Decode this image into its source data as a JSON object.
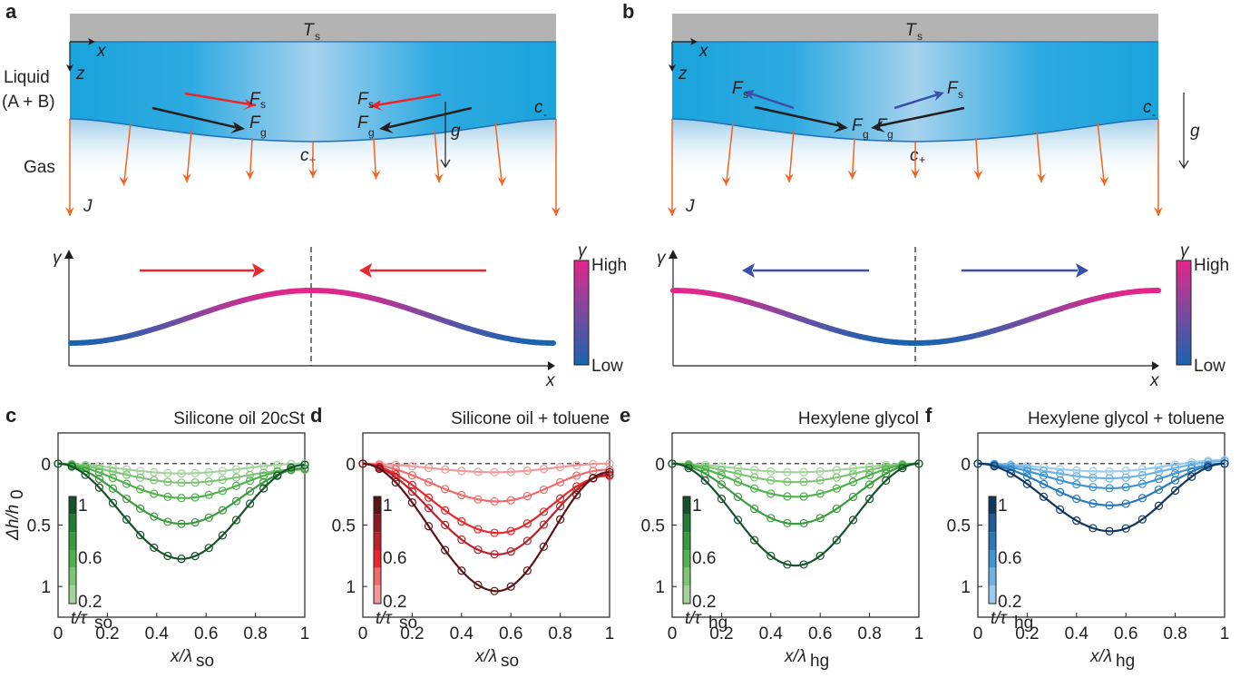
{
  "panels": {
    "a": {
      "letter": "a",
      "top_label": "T",
      "top_label_sub": "s",
      "axis_x": "x",
      "axis_z": "z",
      "liquid_label_1": "Liquid",
      "liquid_label_2": "(A + B)",
      "gas_label": "Gas",
      "flux_label": "J",
      "fs_label": "F",
      "fs_sub": "s",
      "fg_label": "F",
      "fg_sub": "g",
      "c_minus": "c",
      "c_minus_sub": "-",
      "c_plus": "c",
      "c_plus_sub": "+",
      "gravity": "g",
      "fs_color": "#e8262b"
    },
    "b": {
      "letter": "b",
      "top_label": "T",
      "top_label_sub": "s",
      "axis_x": "x",
      "axis_z": "z",
      "flux_label": "J",
      "fs_label": "F",
      "fs_sub": "s",
      "fg_label": "F",
      "fg_sub": "g",
      "c_minus": "c",
      "c_minus_sub": "-",
      "c_plus": "c",
      "c_plus_sub": "+",
      "gravity": "g",
      "fs_color": "#3a4fa8"
    },
    "a_lower": {
      "y_label": "γ",
      "x_label": "x",
      "colorbar_title": "γ",
      "colorbar_high": "High",
      "colorbar_low": "Low",
      "profile": "peak-center",
      "arrow_color": "#e8262b"
    },
    "b_lower": {
      "y_label": "γ",
      "x_label": "x",
      "colorbar_title": "γ",
      "colorbar_high": "High",
      "colorbar_low": "Low",
      "profile": "trough-center",
      "arrow_color": "#3a4fa8"
    }
  },
  "colors": {
    "liquid": "#1aa3dc",
    "liquid_center": "#a6d2ee",
    "substrate": "#b3b3b4",
    "flux": "#f26522",
    "gamma_high": "#e3268a",
    "gamma_low": "#1a63b0"
  },
  "chart_data": [
    {
      "letter": "c",
      "type": "line",
      "title": "Silicone oil 20cSt",
      "xlabel": "x/λ",
      "xlabel_sub": "so",
      "ylabel": "Δh/h",
      "ylabel_sub": "0",
      "xlim": [
        0,
        1
      ],
      "ylim": [
        1.25,
        -0.25
      ],
      "y_inverted": true,
      "xticks": [
        "0",
        "0.2",
        "0.4",
        "0.6",
        "0.8",
        "1"
      ],
      "yticks": [
        "0",
        "0.5",
        "1"
      ],
      "colorbar": {
        "label": "t/τ",
        "label_sub": "so",
        "ticks": [
          "1",
          "0.6",
          "0.2"
        ],
        "colors": [
          "#a3d39c",
          "#7dc475",
          "#4fb24a",
          "#3a9a3e",
          "#237a33",
          "#14532a"
        ]
      },
      "series": [
        {
          "t": 0.2,
          "color": "#a3d39c",
          "depth": 0.08,
          "right": 0.0
        },
        {
          "t": 0.4,
          "color": "#7dc475",
          "depth": 0.13,
          "right": 0.05
        },
        {
          "t": 0.6,
          "color": "#4fb24a",
          "depth": 0.26,
          "right": 0.04
        },
        {
          "t": 0.8,
          "color": "#3a9a3e",
          "depth": 0.47,
          "right": 0.04
        },
        {
          "t": 1.0,
          "color": "#14532a",
          "depth": 0.77,
          "right": 0.01
        }
      ]
    },
    {
      "letter": "d",
      "type": "line",
      "title": "Silicone oil + toluene",
      "xlabel": "x/λ",
      "xlabel_sub": "so",
      "ylabel": "",
      "xlim": [
        0,
        1
      ],
      "ylim": [
        1.25,
        -0.25
      ],
      "y_inverted": true,
      "xticks": [
        "0",
        "0.2",
        "0.4",
        "0.6",
        "0.8",
        "1"
      ],
      "yticks": [
        "0",
        "0.5",
        "1"
      ],
      "colorbar": {
        "label": "t/τ",
        "label_sub": "so",
        "ticks": [
          "1",
          "0.6",
          "0.2"
        ],
        "colors": [
          "#f09999",
          "#ed6b6b",
          "#e8262b",
          "#b8232a",
          "#8a1c22",
          "#5a1416"
        ]
      },
      "series": [
        {
          "t": 0.2,
          "color": "#f09999",
          "depth": 0.07,
          "right": 0.0
        },
        {
          "t": 0.4,
          "color": "#ed6b6b",
          "depth": 0.28,
          "right": 0.05
        },
        {
          "t": 0.6,
          "color": "#e8262b",
          "depth": 0.51,
          "right": 0.1
        },
        {
          "t": 0.8,
          "color": "#b8232a",
          "depth": 0.69,
          "right": 0.09
        },
        {
          "t": 1.0,
          "color": "#5a1416",
          "depth": 1.0,
          "right": 0.07
        }
      ]
    },
    {
      "letter": "e",
      "type": "line",
      "title": "Hexylene glycol",
      "xlabel": "x/λ",
      "xlabel_sub": "hg",
      "ylabel": "",
      "xlim": [
        0,
        1
      ],
      "ylim": [
        1.25,
        -0.25
      ],
      "y_inverted": true,
      "xticks": [
        "0",
        "0.2",
        "0.4",
        "0.6",
        "0.8",
        "1"
      ],
      "yticks": [
        "0",
        "0.5",
        "1"
      ],
      "colorbar": {
        "label": "t/τ",
        "label_sub": "hg",
        "ticks": [
          "1",
          "0.6",
          "0.2"
        ],
        "colors": [
          "#a3d39c",
          "#7dc475",
          "#4fb24a",
          "#3a9a3e",
          "#237a33",
          "#14532a"
        ]
      },
      "series": [
        {
          "t": 0.2,
          "color": "#a3d39c",
          "depth": 0.07,
          "right": 0.0
        },
        {
          "t": 0.4,
          "color": "#7dc475",
          "depth": 0.15,
          "right": 0.0
        },
        {
          "t": 0.6,
          "color": "#4fb24a",
          "depth": 0.27,
          "right": 0.0
        },
        {
          "t": 0.8,
          "color": "#3a9a3e",
          "depth": 0.49,
          "right": 0.0
        },
        {
          "t": 1.0,
          "color": "#14532a",
          "depth": 0.83,
          "right": 0.0
        }
      ]
    },
    {
      "letter": "f",
      "type": "line",
      "title": "Hexylene glycol + toluene",
      "xlabel": "x/λ",
      "xlabel_sub": "hg",
      "ylabel": "",
      "xlim": [
        0,
        1
      ],
      "ylim": [
        1.25,
        -0.25
      ],
      "y_inverted": true,
      "xticks": [
        "0",
        "0.2",
        "0.4",
        "0.6",
        "0.8",
        "1"
      ],
      "yticks": [
        "0",
        "0.5",
        "1"
      ],
      "colorbar": {
        "label": "t/τ",
        "label_sub": "hg",
        "ticks": [
          "1",
          "0.6",
          "0.2"
        ],
        "colors": [
          "#9ccbee",
          "#6fb3e3",
          "#3f94d2",
          "#2a78bb",
          "#1c5c98",
          "#10375f"
        ]
      },
      "series": [
        {
          "t": 0.2,
          "color": "#9ccbee",
          "depth": 0.08,
          "right": -0.03
        },
        {
          "t": 0.4,
          "color": "#6fb3e3",
          "depth": 0.13,
          "right": -0.02
        },
        {
          "t": 0.6,
          "color": "#3f94d2",
          "depth": 0.2,
          "right": 0.0
        },
        {
          "t": 0.8,
          "color": "#2a78bb",
          "depth": 0.34,
          "right": 0.0
        },
        {
          "t": 1.0,
          "color": "#10375f",
          "depth": 0.55,
          "right": 0.0
        }
      ]
    }
  ]
}
